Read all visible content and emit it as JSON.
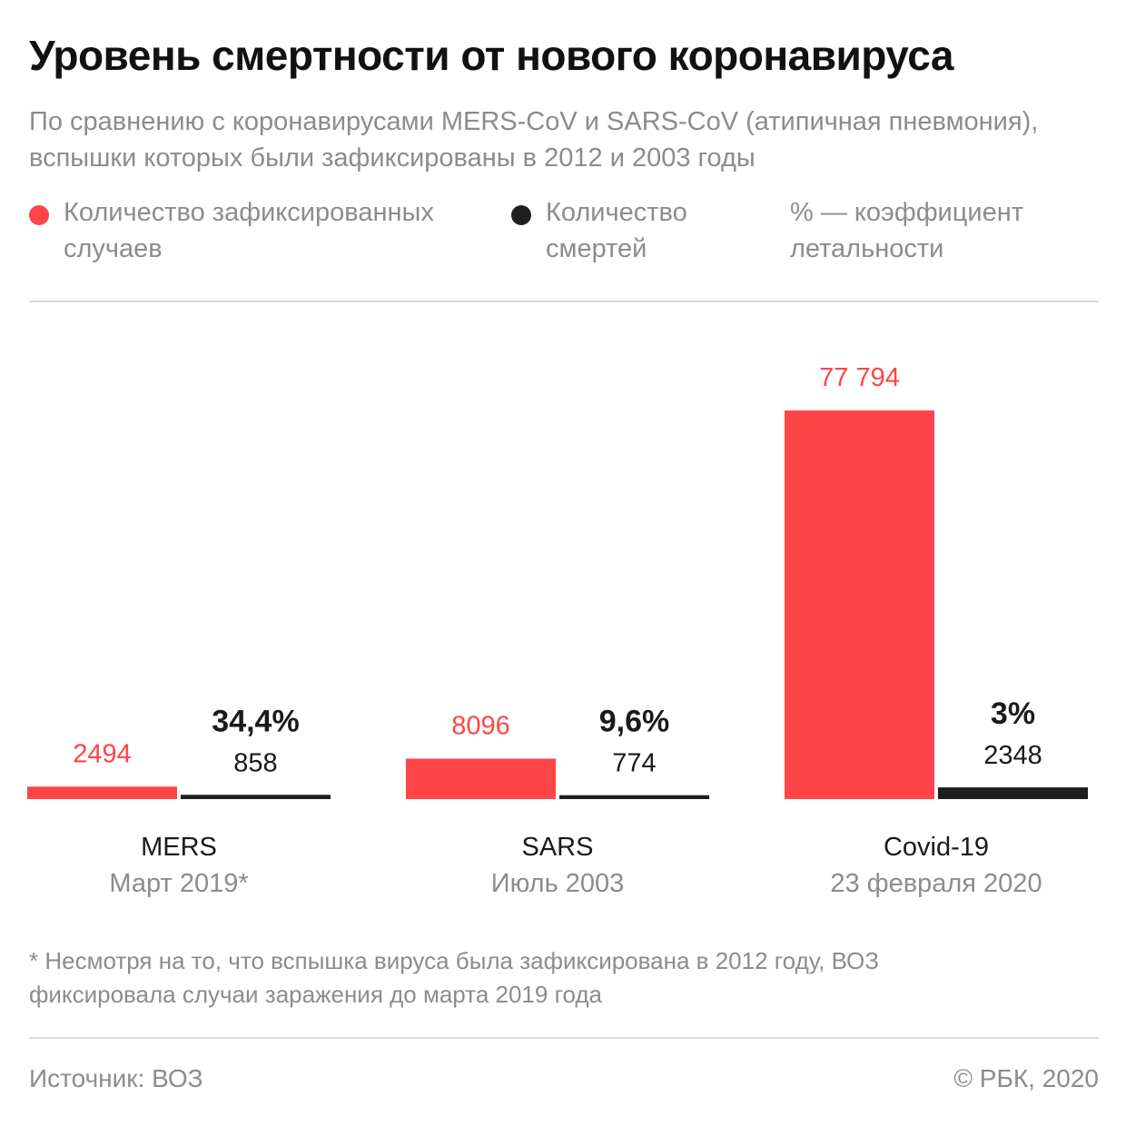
{
  "header": {
    "title": "Уровень смертности от нового коронавируса",
    "subtitle": "По сравнению с коронавирусами MERS-CoV и SARS-CoV (атипичная пневмония), вспышки которых были зафиксированы в 2012 и 2003 годы"
  },
  "legend": {
    "cases": "Количество зафиксированных случаев",
    "deaths": "Количество смертей",
    "rate": "% — коэффициент летальности"
  },
  "colors": {
    "cases": "#ff4547",
    "deaths": "#1e1e1e",
    "muted": "#8c8c8c"
  },
  "chart_data": {
    "type": "bar",
    "categories": [
      "MERS",
      "SARS",
      "Covid-19"
    ],
    "periods": [
      "Март 2019*",
      "Июль 2003",
      "23 февраля 2020"
    ],
    "series": [
      {
        "values": [
          2494,
          8096,
          77794
        ],
        "labels": [
          "2494",
          "8096",
          "77 794"
        ]
      },
      {
        "values": [
          858,
          774,
          2348
        ],
        "labels": [
          "858",
          "774",
          "2348"
        ]
      }
    ],
    "rates": [
      "34,4%",
      "9,6%",
      "3%"
    ],
    "legend": "top"
  },
  "footer": {
    "footnote": "* Несмотря на то, что вспышка вируса была зафиксирована в 2012 году, ВОЗ фиксировала случаи заражения до марта 2019 года",
    "source": "Источник: ВОЗ",
    "copyright": "© РБК, 2020"
  }
}
